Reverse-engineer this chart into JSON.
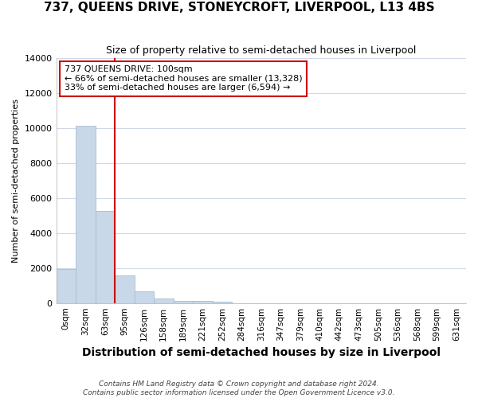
{
  "title": "737, QUEENS DRIVE, STONEYCROFT, LIVERPOOL, L13 4BS",
  "subtitle": "Size of property relative to semi-detached houses in Liverpool",
  "xlabel": "Distribution of semi-detached houses by size in Liverpool",
  "ylabel": "Number of semi-detached properties",
  "footnote1": "Contains HM Land Registry data © Crown copyright and database right 2024.",
  "footnote2": "Contains public sector information licensed under the Open Government Licence v3.0.",
  "bar_labels": [
    "0sqm",
    "32sqm",
    "63sqm",
    "95sqm",
    "126sqm",
    "158sqm",
    "189sqm",
    "221sqm",
    "252sqm",
    "284sqm",
    "316sqm",
    "347sqm",
    "379sqm",
    "410sqm",
    "442sqm",
    "473sqm",
    "505sqm",
    "536sqm",
    "568sqm",
    "599sqm",
    "631sqm"
  ],
  "bar_values": [
    1950,
    10150,
    5280,
    1570,
    670,
    260,
    130,
    100,
    60,
    0,
    0,
    0,
    0,
    0,
    0,
    0,
    0,
    0,
    0,
    0,
    0
  ],
  "bar_color": "#c8d8e8",
  "bar_edge_color": "#a8bdd0",
  "vline_color": "#cc0000",
  "vline_x": 3,
  "annotation_line1": "737 QUEENS DRIVE: 100sqm",
  "annotation_line2": "← 66% of semi-detached houses are smaller (13,328)",
  "annotation_line3": "33% of semi-detached houses are larger (6,594) →",
  "ylim": [
    0,
    14000
  ],
  "yticks": [
    0,
    2000,
    4000,
    6000,
    8000,
    10000,
    12000,
    14000
  ],
  "background_color": "#ffffff",
  "plot_background": "#ffffff",
  "grid_color": "#d0d8e8",
  "annotation_box_facecolor": "#ffffff",
  "annotation_box_edgecolor": "#cc0000",
  "title_fontsize": 11,
  "subtitle_fontsize": 9,
  "ylabel_fontsize": 8,
  "xlabel_fontsize": 10,
  "ytick_fontsize": 8,
  "xtick_fontsize": 7.5,
  "annotation_fontsize": 8
}
